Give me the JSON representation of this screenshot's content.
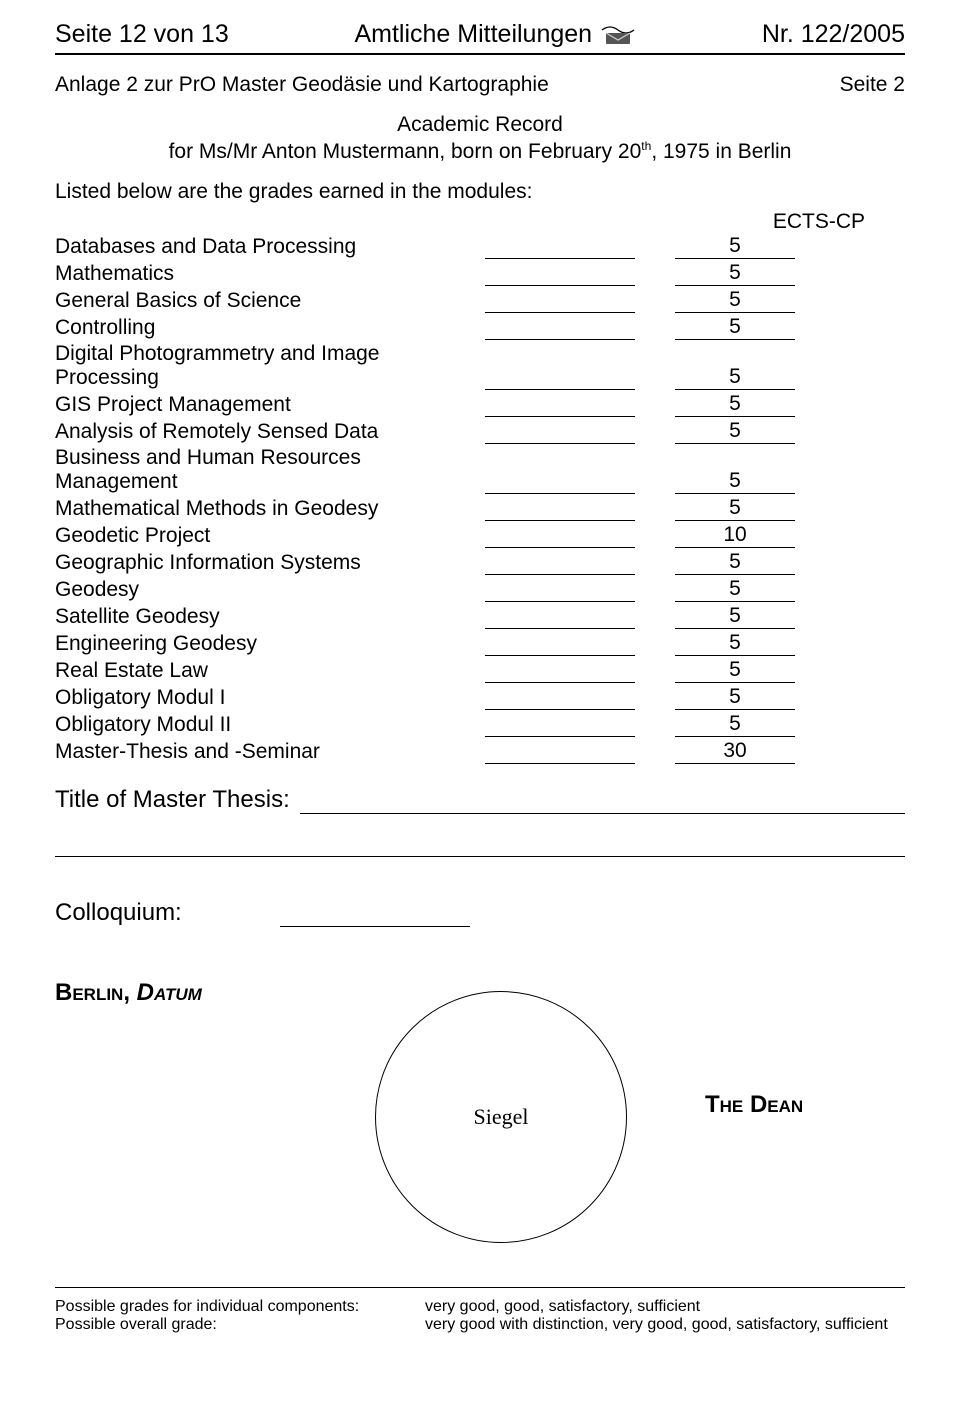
{
  "header": {
    "left": "Seite 12 von 13",
    "center": "Amtliche Mitteilungen",
    "right": "Nr. 122/2005"
  },
  "title_left": "Anlage 2 zur PrO Master Geodäsie und Kartographie",
  "title_right": "Seite 2",
  "academic_record_title": "Academic Record",
  "record_line_prefix": "for Ms/Mr Anton Mustermann, born on February 20",
  "record_line_sup": "th",
  "record_line_suffix": ", 1975 in Berlin",
  "intro": "Listed below are the grades earned in the modules:",
  "ects_header": "ECTS-CP",
  "modules": [
    {
      "name": "Databases and Data Processing",
      "ects": "5"
    },
    {
      "name": "Mathematics",
      "ects": "5"
    },
    {
      "name": "General Basics of Science",
      "ects": "5"
    },
    {
      "name": "Controlling",
      "ects": "5"
    },
    {
      "name": "Digital Photogrammetry and Image Processing",
      "ects": "5"
    },
    {
      "name": "GIS Project Management",
      "ects": "5"
    },
    {
      "name": "Analysis of Remotely Sensed Data",
      "ects": "5"
    },
    {
      "name": "Business and Human Resources Management",
      "ects": "5"
    },
    {
      "name": "Mathematical Methods in Geodesy",
      "ects": "5"
    },
    {
      "name": "Geodetic Project",
      "ects": "10"
    },
    {
      "name": "Geographic Information Systems",
      "ects": "5"
    },
    {
      "name": "Geodesy",
      "ects": "5"
    },
    {
      "name": "Satellite Geodesy",
      "ects": "5"
    },
    {
      "name": "Engineering Geodesy",
      "ects": "5"
    },
    {
      "name": "Real Estate Law",
      "ects": "5"
    },
    {
      "name": "Obligatory Modul I",
      "ects": "5"
    },
    {
      "name": "Obligatory Modul II",
      "ects": "5"
    },
    {
      "name": "Master-Thesis and -Seminar",
      "ects": "30"
    }
  ],
  "thesis_label": "Title of Master Thesis:",
  "colloquium_label": "Colloquium:",
  "place_date_berlin": "Berlin, ",
  "place_date_datum": "Datum",
  "seal_text": "Siegel",
  "dean_text": "The Dean",
  "footer": {
    "row1_left": "Possible grades for individual components:",
    "row1_right": "very good, good, satisfactory, sufficient",
    "row2_left": "Possible overall grade:",
    "row2_right": "very good with distinction, very good, good, satisfactory, sufficient"
  }
}
